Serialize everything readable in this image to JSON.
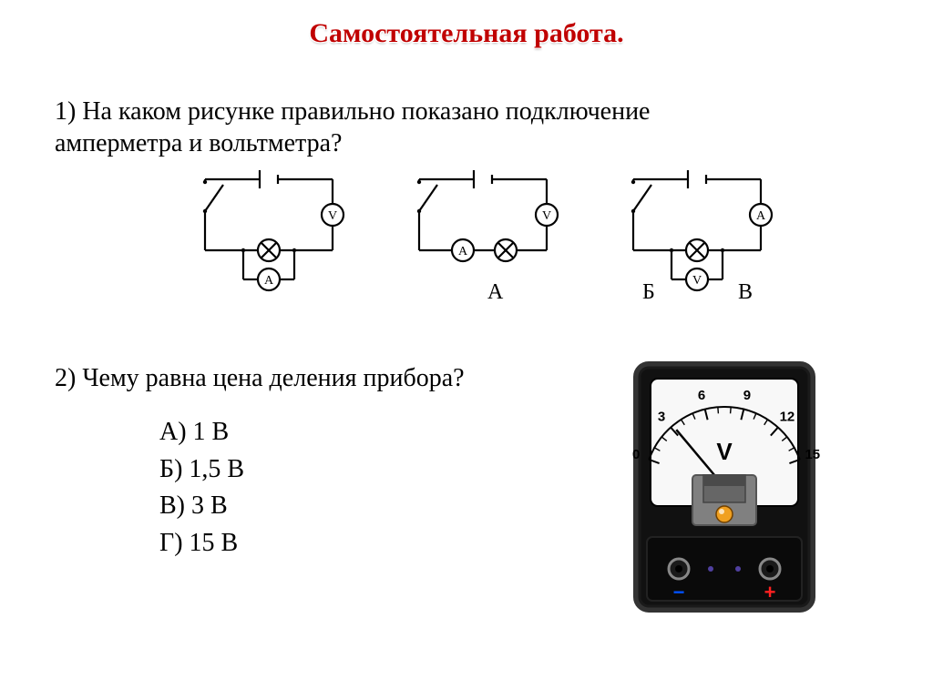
{
  "colors": {
    "title": "#c00000",
    "text": "#000000",
    "circuit_stroke": "#000000",
    "meter_body_dark": "#111111",
    "meter_body_edge": "#333333",
    "meter_face": "#f8f8f8",
    "meter_bezel": "#888888",
    "meter_center": "#808080",
    "meter_amber": "#f0a020",
    "meter_tick": "#000000",
    "meter_minus": "#0050ff",
    "meter_plus": "#ff2020",
    "meter_purple": "#5040a0"
  },
  "title": "Самостоятельная работа.",
  "q1": {
    "text_line1": "1) На каком рисунке правильно показано подключение",
    "text_line2": "амперметра и вольтметра?",
    "labels": {
      "a": "А",
      "b": "Б",
      "c": "В"
    }
  },
  "q2": {
    "text": "2) Чему равна цена деления прибора?",
    "options": {
      "a": "А) 1 В",
      "b": "Б) 1,5 В",
      "c": "В) 3 В",
      "d": "Г) 15 В"
    }
  },
  "circuits": {
    "stroke_width": 2.2,
    "node_radius": 12,
    "symbols": {
      "V": "V",
      "A": "A"
    },
    "layout": {
      "A": {
        "main_meter": "V",
        "branch_meter": "A",
        "second_inline": null
      },
      "B": {
        "main_meter": "V",
        "branch_meter": null,
        "second_inline": "A"
      },
      "C": {
        "main_meter": "A",
        "branch_meter": "V",
        "second_inline": null
      }
    }
  },
  "meter": {
    "unit": "V",
    "ticks": [
      "0",
      "3",
      "6",
      "9",
      "12",
      "15"
    ],
    "minus": "−",
    "plus": "+",
    "scale_start_deg": -70,
    "scale_end_deg": 70,
    "needle_deg": -40
  }
}
